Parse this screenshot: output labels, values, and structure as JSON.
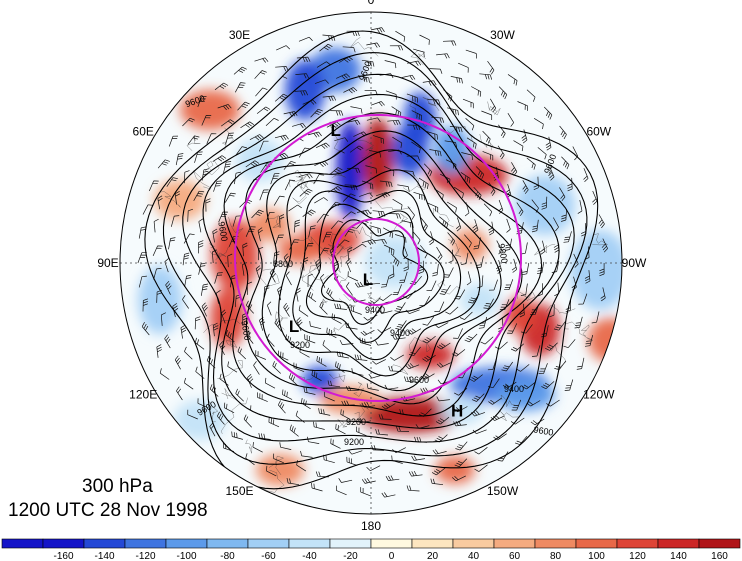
{
  "title_level": "300 hPa",
  "title_time": "1200 UTC 28 Nov 1998",
  "longitude_labels": [
    {
      "text": "0",
      "lon": 0
    },
    {
      "text": "30W",
      "lon": -30
    },
    {
      "text": "60W",
      "lon": -60
    },
    {
      "text": "90W",
      "lon": -90
    },
    {
      "text": "120W",
      "lon": -120
    },
    {
      "text": "150W",
      "lon": -150
    },
    {
      "text": "180",
      "lon": 180
    },
    {
      "text": "150E",
      "lon": 150
    },
    {
      "text": "120E",
      "lon": 120
    },
    {
      "text": "90E",
      "lon": 90
    },
    {
      "text": "60E",
      "lon": 60
    },
    {
      "text": "30E",
      "lon": 30
    }
  ],
  "pressure_centers": [
    {
      "text": "L",
      "lon": 15,
      "lat": 52
    },
    {
      "text": "L",
      "lon": 170,
      "lat": 85
    },
    {
      "text": "L",
      "lon": 130,
      "lat": 62
    },
    {
      "text": "H",
      "lon": -150,
      "lat": 42
    }
  ],
  "contour_labels": [
    "9600",
    "9600",
    "9400",
    "9200",
    "8800",
    "9600",
    "9400",
    "9200",
    "9600",
    "9800",
    "9600",
    "9400",
    "9600",
    "9600",
    "9200",
    "9600"
  ],
  "colorbar": {
    "values": [
      -160,
      -140,
      -120,
      -100,
      -80,
      -60,
      -40,
      -20,
      0,
      20,
      40,
      60,
      80,
      100,
      120,
      140,
      160
    ],
    "colors": [
      "#1414c8",
      "#2448d6",
      "#3f74e0",
      "#5c9aea",
      "#7fb8f0",
      "#a2cff5",
      "#c3e3f8",
      "#e2f3fb",
      "#fff9e0",
      "#fde6c0",
      "#f9cba0",
      "#f5ab80",
      "#ef8a62",
      "#e86848",
      "#de4436",
      "#cc2626",
      "#b01418"
    ]
  },
  "palette": {
    "circle": "#d21ad2",
    "contour": "#000000",
    "coast": "#333333"
  }
}
